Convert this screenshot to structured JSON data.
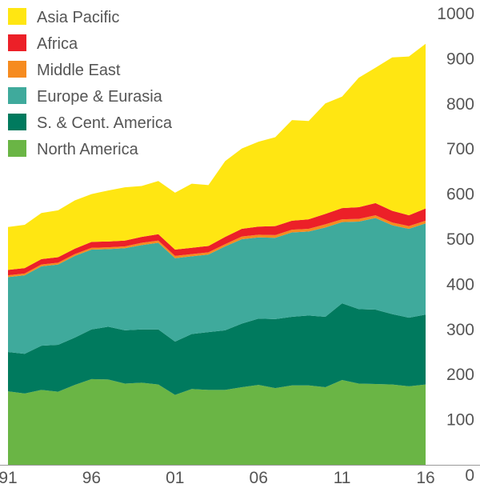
{
  "chart_data": {
    "type": "area",
    "stacked": true,
    "x": [
      1991,
      1992,
      1993,
      1994,
      1995,
      1996,
      1997,
      1998,
      1999,
      2000,
      2001,
      2002,
      2003,
      2004,
      2005,
      2006,
      2007,
      2008,
      2009,
      2010,
      2011,
      2012,
      2013,
      2014,
      2015,
      2016
    ],
    "x_tick_labels": [
      {
        "x": 1991,
        "label": "91"
      },
      {
        "x": 1996,
        "label": "96"
      },
      {
        "x": 2001,
        "label": "01"
      },
      {
        "x": 2006,
        "label": "06"
      },
      {
        "x": 2011,
        "label": "11"
      },
      {
        "x": 2016,
        "label": "16"
      }
    ],
    "ylim": [
      0,
      1000
    ],
    "y_ticks": [
      0,
      100,
      200,
      300,
      400,
      500,
      600,
      700,
      800,
      900,
      1000
    ],
    "y_axis_position": "right",
    "legend_position": "top-left",
    "grid": false,
    "series": [
      {
        "name": "North America",
        "color": "#6ab545",
        "values": [
          163,
          158,
          166,
          162,
          177,
          190,
          189,
          180,
          182,
          178,
          155,
          168,
          166,
          166,
          172,
          177,
          170,
          176,
          176,
          172,
          188,
          180,
          179,
          178,
          174,
          178
        ]
      },
      {
        "name": "S. & Cent. America",
        "color": "#007a5e",
        "values": [
          87,
          88,
          98,
          104,
          105,
          110,
          117,
          118,
          118,
          122,
          118,
          122,
          128,
          132,
          141,
          147,
          153,
          152,
          155,
          156,
          170,
          165,
          165,
          156,
          152,
          155
        ]
      },
      {
        "name": "Europe & Eurasia",
        "color": "#3faa9c",
        "values": [
          166,
          174,
          176,
          178,
          181,
          177,
          172,
          182,
          187,
          192,
          185,
          172,
          172,
          186,
          187,
          180,
          180,
          187,
          186,
          198,
          180,
          194,
          203,
          197,
          197,
          202
        ]
      },
      {
        "name": "Middle East",
        "color": "#f68b1f",
        "values": [
          4,
          4,
          4,
          4,
          4,
          4,
          4,
          4,
          5,
          5,
          5,
          5,
          5,
          5,
          6,
          6,
          6,
          6,
          6,
          7,
          6,
          6,
          6,
          6,
          6,
          6
        ]
      },
      {
        "name": "Africa",
        "color": "#ec2028",
        "values": [
          12,
          12,
          12,
          12,
          12,
          13,
          13,
          13,
          13,
          14,
          14,
          14,
          14,
          16,
          17,
          18,
          20,
          20,
          21,
          23,
          25,
          26,
          27,
          26,
          24,
          27
        ]
      },
      {
        "name": "Asia Pacific",
        "color": "#ffe612",
        "values": [
          95,
          96,
          102,
          104,
          107,
          106,
          113,
          118,
          113,
          118,
          126,
          142,
          135,
          168,
          178,
          188,
          197,
          223,
          218,
          245,
          247,
          287,
          300,
          340,
          352,
          365
        ]
      }
    ]
  }
}
